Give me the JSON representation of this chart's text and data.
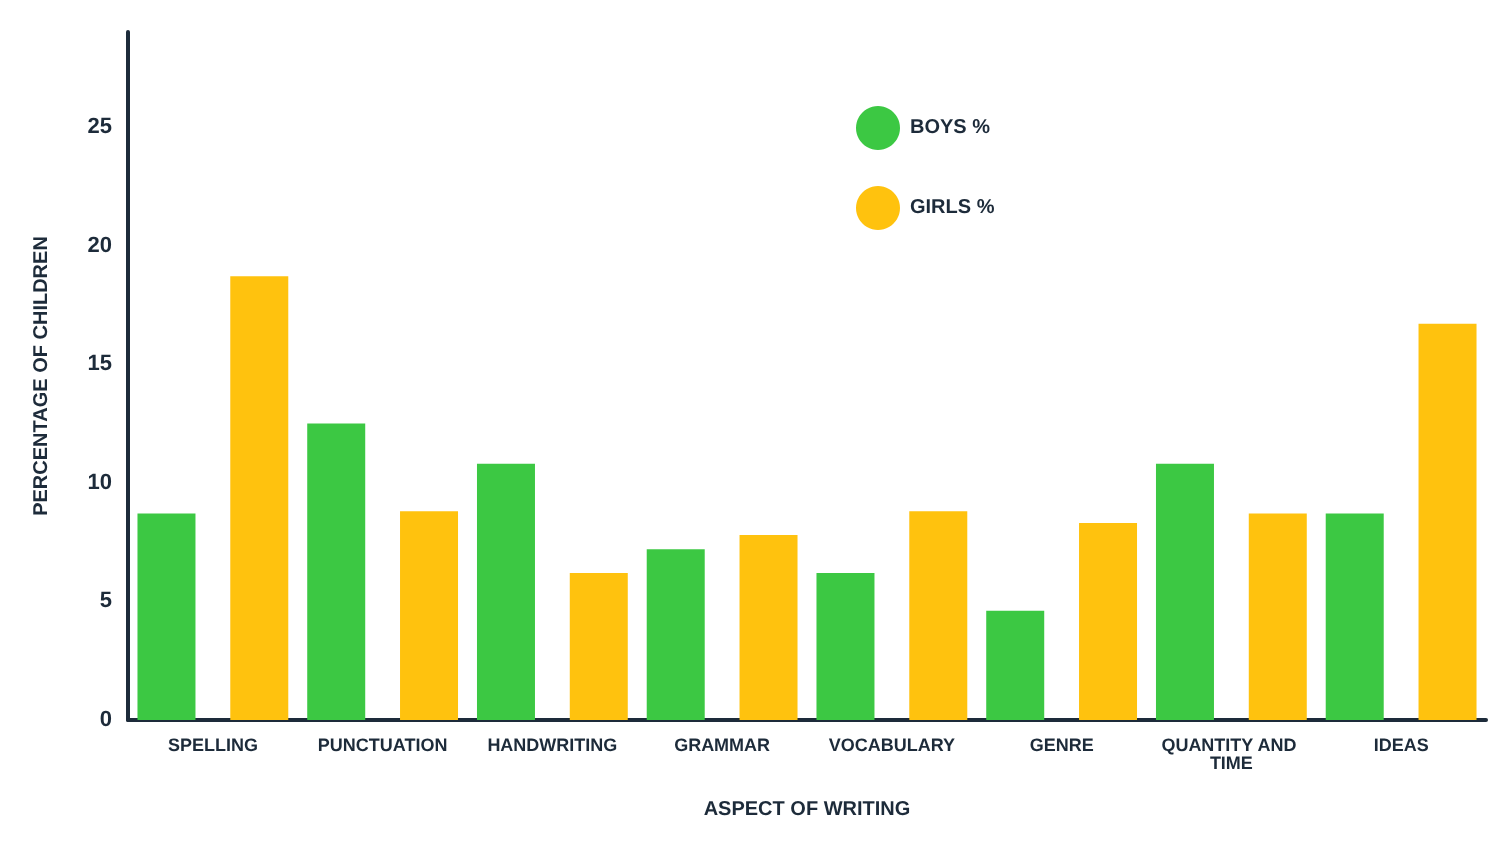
{
  "chart_data": {
    "type": "bar",
    "xlabel": "ASPECT OF WRITING",
    "ylabel": "PERCENTAGE OF CHILDREN",
    "categories": [
      "SPELLING",
      "PUNCTUATION",
      "HANDWRITING",
      "GRAMMAR",
      "VOCABULARY",
      "GENRE",
      "QUANTITY AND TIME",
      "IDEAS"
    ],
    "series": [
      {
        "name": "BOYS %",
        "color": "#3cc843",
        "values": [
          8.7,
          12.5,
          10.8,
          7.2,
          6.2,
          4.6,
          10.8,
          8.7
        ]
      },
      {
        "name": "GIRLS %",
        "color": "#ffc20e",
        "values": [
          18.7,
          8.8,
          6.2,
          7.8,
          8.8,
          8.3,
          8.7,
          16.7
        ]
      }
    ],
    "ylim": [
      0,
      29
    ],
    "yticks": [
      0,
      5,
      10,
      15,
      20,
      25
    ],
    "grid": false,
    "legend": "top"
  }
}
